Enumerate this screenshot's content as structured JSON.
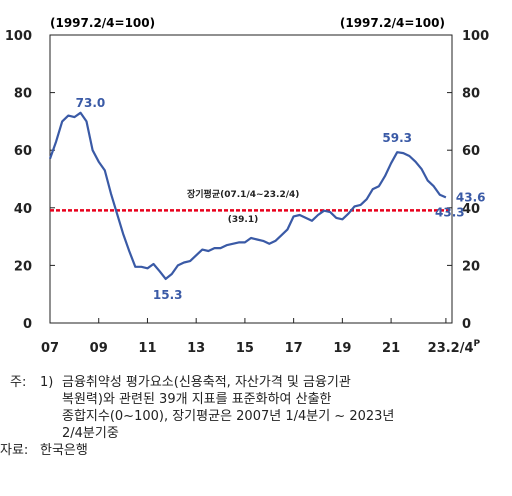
{
  "chart_data": {
    "type": "line",
    "unit_left": "(1997.2/4=100)",
    "unit_right": "(1997.2/4=100)",
    "ylim": [
      0,
      100
    ],
    "yticks": [
      0,
      20,
      40,
      60,
      80,
      100
    ],
    "xlim": [
      2007.0,
      2023.5
    ],
    "xtick_labels": [
      {
        "x": 2007,
        "label": "07"
      },
      {
        "x": 2009,
        "label": "09"
      },
      {
        "x": 2011,
        "label": "11"
      },
      {
        "x": 2013,
        "label": "13"
      },
      {
        "x": 2015,
        "label": "15"
      },
      {
        "x": 2017,
        "label": "17"
      },
      {
        "x": 2019,
        "label": "19"
      },
      {
        "x": 2021,
        "label": "21"
      },
      {
        "x": 2023.25,
        "label": "23.2/4"
      }
    ],
    "xtick_superscript": "P",
    "series": [
      {
        "color": "#3a5aa6",
        "points": [
          [
            2007.0,
            57.0
          ],
          [
            2007.25,
            63.0
          ],
          [
            2007.5,
            70.0
          ],
          [
            2007.75,
            72.0
          ],
          [
            2008.0,
            71.5
          ],
          [
            2008.25,
            73.0
          ],
          [
            2008.5,
            70.0
          ],
          [
            2008.75,
            60.0
          ],
          [
            2009.0,
            56.0
          ],
          [
            2009.25,
            53.0
          ],
          [
            2009.5,
            45.0
          ],
          [
            2009.75,
            38.0
          ],
          [
            2010.0,
            31.0
          ],
          [
            2010.25,
            25.0
          ],
          [
            2010.5,
            19.5
          ],
          [
            2010.75,
            19.5
          ],
          [
            2011.0,
            19.0
          ],
          [
            2011.25,
            20.5
          ],
          [
            2011.5,
            18.0
          ],
          [
            2011.75,
            15.3
          ],
          [
            2012.0,
            17.0
          ],
          [
            2012.25,
            20.0
          ],
          [
            2012.5,
            21.0
          ],
          [
            2012.75,
            21.5
          ],
          [
            2013.0,
            23.5
          ],
          [
            2013.25,
            25.5
          ],
          [
            2013.5,
            25.0
          ],
          [
            2013.75,
            26.0
          ],
          [
            2014.0,
            26.0
          ],
          [
            2014.25,
            27.0
          ],
          [
            2014.5,
            27.5
          ],
          [
            2014.75,
            28.0
          ],
          [
            2015.0,
            28.0
          ],
          [
            2015.25,
            29.5
          ],
          [
            2015.5,
            29.0
          ],
          [
            2015.75,
            28.5
          ],
          [
            2016.0,
            27.5
          ],
          [
            2016.25,
            28.5
          ],
          [
            2016.5,
            30.5
          ],
          [
            2016.75,
            32.5
          ],
          [
            2017.0,
            37.0
          ],
          [
            2017.25,
            37.5
          ],
          [
            2017.5,
            36.5
          ],
          [
            2017.75,
            35.5
          ],
          [
            2018.0,
            37.5
          ],
          [
            2018.25,
            39.0
          ],
          [
            2018.5,
            38.5
          ],
          [
            2018.75,
            36.5
          ],
          [
            2019.0,
            36.0
          ],
          [
            2019.25,
            38.0
          ],
          [
            2019.5,
            40.5
          ],
          [
            2019.75,
            41.0
          ],
          [
            2020.0,
            43.0
          ],
          [
            2020.25,
            46.5
          ],
          [
            2020.5,
            47.5
          ],
          [
            2020.75,
            51.0
          ],
          [
            2021.0,
            55.5
          ],
          [
            2021.25,
            59.3
          ],
          [
            2021.5,
            59.0
          ],
          [
            2021.75,
            58.0
          ],
          [
            2022.0,
            56.0
          ],
          [
            2022.25,
            53.5
          ],
          [
            2022.5,
            49.5
          ],
          [
            2022.75,
            47.5
          ],
          [
            2023.0,
            44.5
          ],
          [
            2023.25,
            43.6
          ]
        ]
      }
    ],
    "reference_line": {
      "value": 39.1,
      "color": "#e8001c",
      "style": "dashed"
    },
    "annotations": [
      {
        "text": "73.0",
        "x": 2008.25,
        "y": 73.0,
        "color": "#3a5aa6"
      },
      {
        "text": "15.3",
        "x": 2011.75,
        "y": 15.3,
        "color": "#3a5aa6"
      },
      {
        "text": "59.3",
        "x": 2021.25,
        "y": 59.3,
        "color": "#3a5aa6"
      },
      {
        "text": "43.6",
        "x": 2023.25,
        "y": 43.6,
        "color": "#3a5aa6"
      },
      {
        "text": "43.3",
        "x": 2023.0,
        "y": 39.1,
        "color": "#3a5aa6"
      }
    ],
    "average_label": "장기평균(07.1/4~23.2/4)",
    "average_value_label": "(39.1)"
  },
  "notes": {
    "label": "주:",
    "number": "1)",
    "line1": "금융취약성 평가요소(신용축적, 자산가격 및 금융기관",
    "line2": "복원력)와 관련된 39개 지표를 표준화하여 산출한",
    "line3": "종합지수(0~100), 장기평균은 2007년 1/4분기 ~ 2023년",
    "line4": "2/4분기중",
    "source_label": "자료:",
    "source_text": "한국은행"
  }
}
